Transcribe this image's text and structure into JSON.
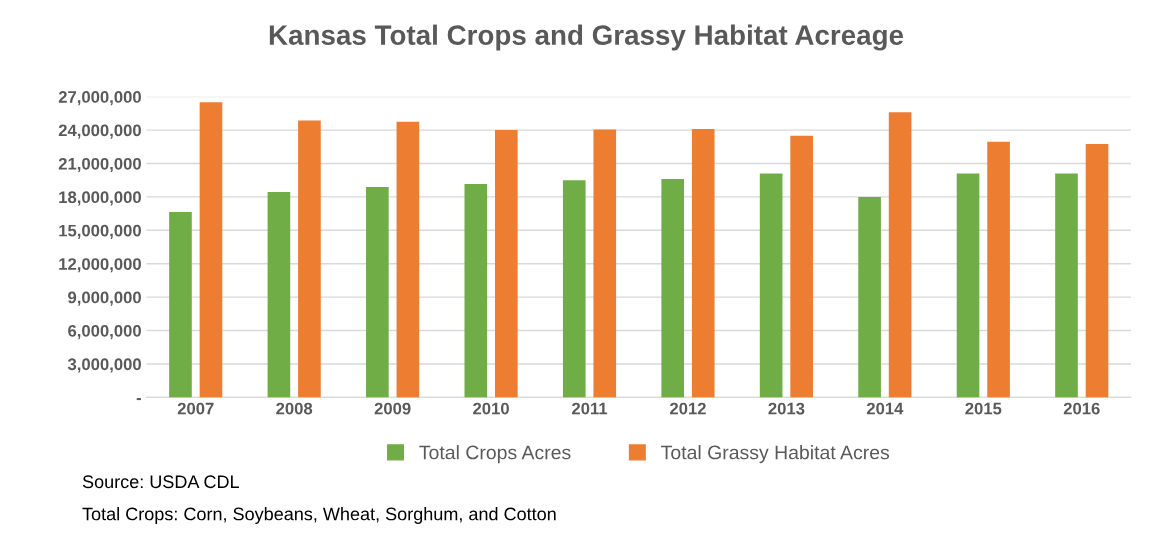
{
  "chart_data": {
    "type": "bar",
    "title": "Kansas Total Crops and Grassy Habitat Acreage",
    "categories": [
      "2007",
      "2008",
      "2009",
      "2010",
      "2011",
      "2012",
      "2013",
      "2014",
      "2015",
      "2016"
    ],
    "series": [
      {
        "name": "Total Crops Acres",
        "color": "#70ad47",
        "values": [
          16650000,
          18450000,
          18900000,
          19150000,
          19500000,
          19600000,
          20100000,
          18000000,
          20100000,
          20100000
        ]
      },
      {
        "name": "Total Grassy Habitat Acres",
        "color": "#ed7d31",
        "values": [
          26500000,
          24850000,
          24750000,
          24000000,
          24050000,
          24100000,
          23500000,
          25600000,
          22950000,
          22750000
        ]
      }
    ],
    "ylim": [
      0,
      27000000
    ],
    "yticks": [
      {
        "value": 0,
        "label": "-"
      },
      {
        "value": 3000000,
        "label": "3,000,000"
      },
      {
        "value": 6000000,
        "label": "6,000,000"
      },
      {
        "value": 9000000,
        "label": "9,000,000"
      },
      {
        "value": 12000000,
        "label": "12,000,000"
      },
      {
        "value": 15000000,
        "label": "15,000,000"
      },
      {
        "value": 18000000,
        "label": "18,000,000"
      },
      {
        "value": 21000000,
        "label": "21,000,000"
      },
      {
        "value": 24000000,
        "label": "24,000,000"
      },
      {
        "value": 27000000,
        "label": "27,000,000"
      }
    ],
    "grid": "y",
    "legend": "bottom",
    "annotations": [
      "Source: USDA CDL",
      "Total Crops: Corn, Soybeans, Wheat, Sorghum, and Cotton"
    ]
  }
}
